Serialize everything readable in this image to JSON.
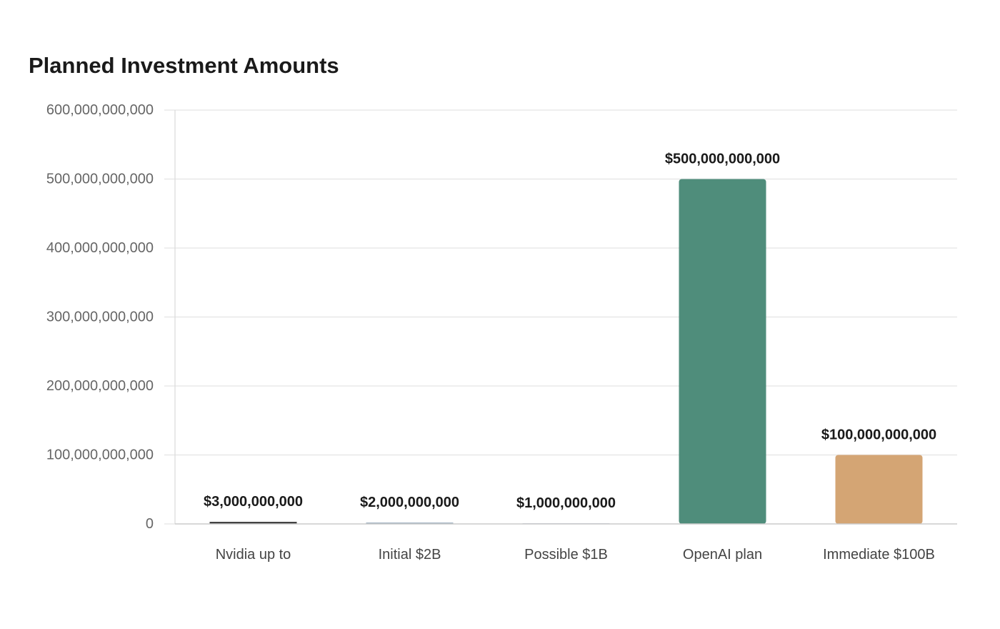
{
  "chart_data": {
    "type": "bar",
    "title": "Planned Investment Amounts",
    "xlabel": "",
    "ylabel": "",
    "ylim": [
      0,
      600000000000
    ],
    "yticks": [
      "0",
      "100,000,000,000",
      "200,000,000,000",
      "300,000,000,000",
      "400,000,000,000",
      "500,000,000,000",
      "600,000,000,000"
    ],
    "grid": true,
    "categories": [
      "Nvidia up to",
      "Initial $2B",
      "Possible $1B",
      "OpenAI plan",
      "Immediate $100B"
    ],
    "values": [
      3000000000,
      2000000000,
      1000000000,
      500000000000,
      100000000000
    ],
    "data_labels": [
      "$3,000,000,000",
      "$2,000,000,000",
      "$1,000,000,000",
      "$500,000,000,000",
      "$100,000,000,000"
    ],
    "colors": [
      "#3a3a3a",
      "#9fb0c0",
      "#b8c4cf",
      "#4f8d7b",
      "#d4a574"
    ]
  }
}
